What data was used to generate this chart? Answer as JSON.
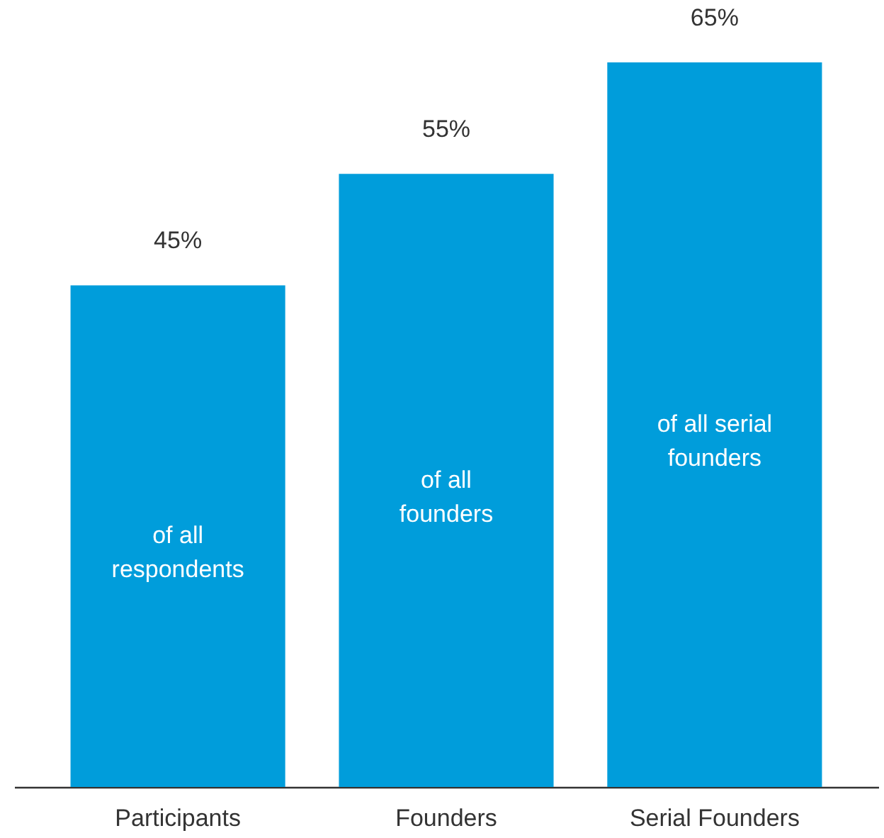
{
  "chart_data": {
    "type": "bar",
    "categories": [
      "Participants",
      "Founders",
      "Serial Founders"
    ],
    "values": [
      45,
      55,
      65
    ],
    "color": "#009ddb",
    "value_labels": [
      "45%",
      "55%",
      "65%"
    ],
    "annotations": [
      "of all\nrespondents",
      "of all\nfounders",
      "of all serial\nfounders"
    ],
    "grid": false
  }
}
